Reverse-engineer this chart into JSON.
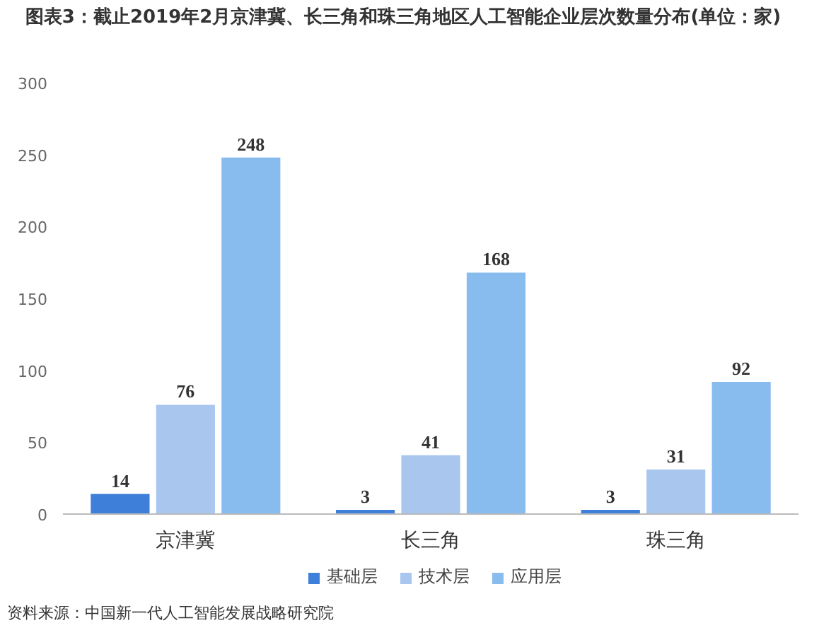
{
  "chart_data": {
    "type": "bar",
    "title": "图表3：截止2019年2月京津冀、长三角和珠三角地区人工智能企业层次数量分布(单位：家)",
    "categories": [
      "京津冀",
      "长三角",
      "珠三角"
    ],
    "series": [
      {
        "name": "基础层",
        "color": "#3d7fd9",
        "values": [
          14,
          3,
          3
        ]
      },
      {
        "name": "技术层",
        "color": "#a9c6ef",
        "values": [
          76,
          41,
          31
        ]
      },
      {
        "name": "应用层",
        "color": "#88bbee",
        "values": [
          248,
          168,
          92
        ]
      }
    ],
    "ylim": [
      0,
      300
    ],
    "yticks": [
      0,
      50,
      100,
      150,
      200,
      250,
      300
    ],
    "grid": false,
    "legend": "bottom",
    "data_labels": true,
    "annotations": [
      "资料来源：中国新一代人工智能发展战略研究院"
    ]
  }
}
